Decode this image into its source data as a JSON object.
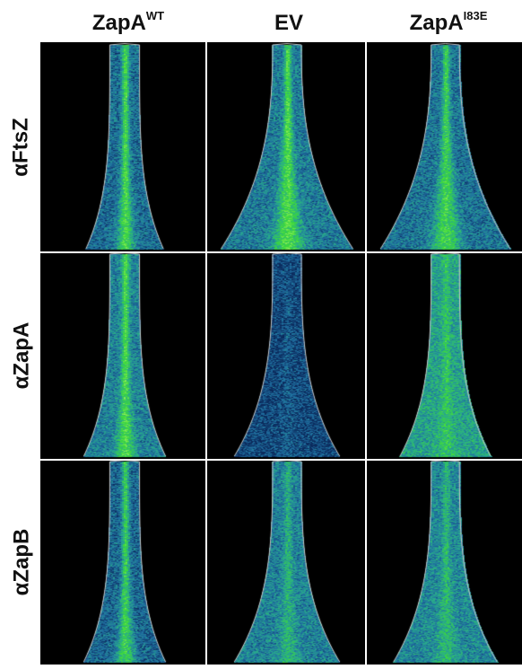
{
  "columns": [
    {
      "main": "ZapA",
      "sup": "WT"
    },
    {
      "main": "EV",
      "sup": ""
    },
    {
      "main": "ZapA",
      "sup": "I83E"
    }
  ],
  "rows": [
    "αFtsZ",
    "αZapA",
    "αZapB"
  ],
  "colors": {
    "background": "#000000",
    "outline": "#c9c9c9",
    "low": "#0b2a5c",
    "mid": "#1f8fa0",
    "high": "#3cd83c"
  },
  "panels": [
    [
      {
        "intensity": 0.45,
        "spread": 0.15,
        "core": 0.85
      },
      {
        "intensity": 0.55,
        "spread": 0.8,
        "core": 0.8
      },
      {
        "intensity": 0.5,
        "spread": 0.8,
        "core": 0.75
      }
    ],
    [
      {
        "intensity": 0.6,
        "spread": 0.2,
        "core": 0.75
      },
      {
        "intensity": 0.2,
        "spread": 0.5,
        "core": 0.1
      },
      {
        "intensity": 0.85,
        "spread": 0.35,
        "core": 0.3
      }
    ],
    [
      {
        "intensity": 0.4,
        "spread": 0.2,
        "core": 0.8
      },
      {
        "intensity": 0.6,
        "spread": 0.5,
        "core": 0.35
      },
      {
        "intensity": 0.65,
        "spread": 0.5,
        "core": 0.35
      }
    ]
  ]
}
